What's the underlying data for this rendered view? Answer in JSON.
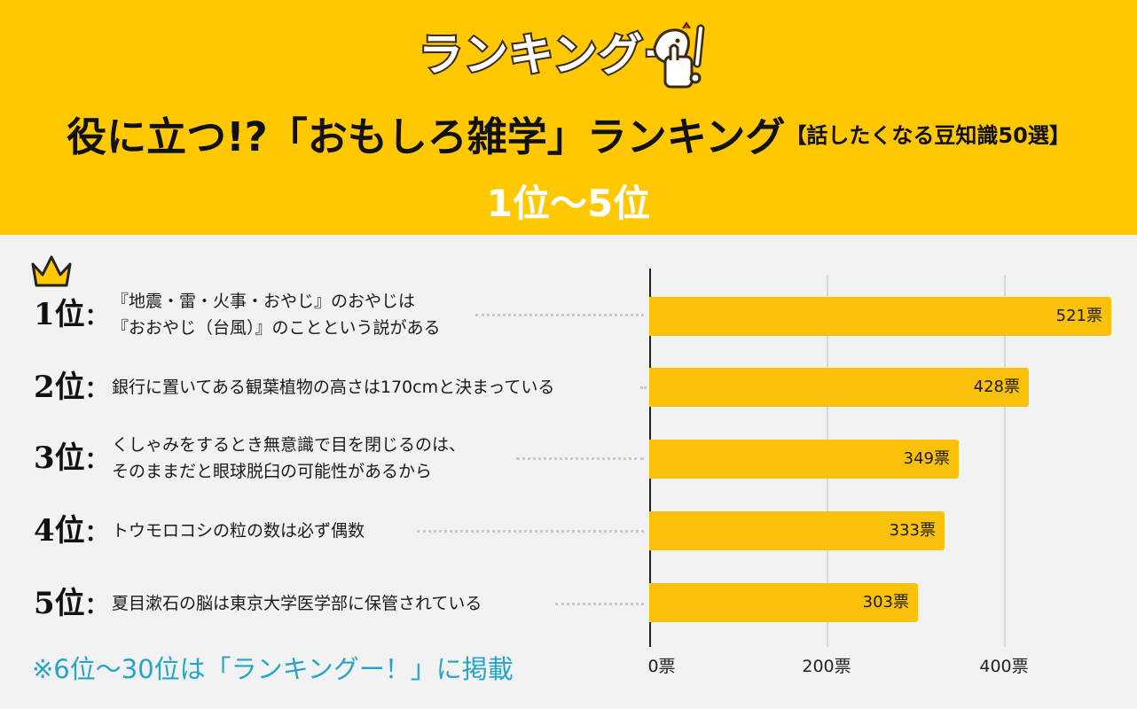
{
  "header": {
    "logo_text": "ランキングー",
    "title_main": "役に立つ!?「おもしろ雑学」ランキング",
    "title_sub": "【話したくなる豆知識50選】",
    "range": "1位〜5位"
  },
  "ranking_items": [
    {
      "rank": "1",
      "suffix": "位",
      "lines": [
        "『地震・雷・火事・おやじ』のおやじは",
        "『おおやじ（台風）』のことという説がある"
      ]
    },
    {
      "rank": "2",
      "suffix": "位",
      "lines": [
        "銀行に置いてある観葉植物の高さは170cmと決まっている"
      ]
    },
    {
      "rank": "3",
      "suffix": "位",
      "lines": [
        "くしゃみをするとき無意識で目を閉じるのは、",
        "そのままだと眼球脱臼の可能性があるから"
      ]
    },
    {
      "rank": "4",
      "suffix": "位",
      "lines": [
        "トウモロコシの粒の数は必ず偶数"
      ]
    },
    {
      "rank": "5",
      "suffix": "位",
      "lines": [
        "夏目漱石の脳は東京大学医学部に保管されている"
      ]
    }
  ],
  "chart_data": {
    "type": "bar",
    "orientation": "horizontal",
    "categories": [
      "1位",
      "2位",
      "3位",
      "4位",
      "5位"
    ],
    "values": [
      521,
      428,
      349,
      333,
      303
    ],
    "value_labels": [
      "521票",
      "428票",
      "349票",
      "333票",
      "303票"
    ],
    "xlim": [
      0,
      530
    ],
    "ticks": [
      0,
      200,
      400
    ],
    "tick_labels": [
      "0票",
      "200票",
      "400票"
    ],
    "grid": true,
    "bar_color": "#f9c10a"
  },
  "footnote": "※6位〜30位は「ランキングー！」に掲載",
  "colors": {
    "header_bg": "#ffc800",
    "page_bg": "#f2f2f2",
    "bar": "#f9c10a",
    "footnote": "#27a5c6",
    "crown": "#ffc800"
  }
}
